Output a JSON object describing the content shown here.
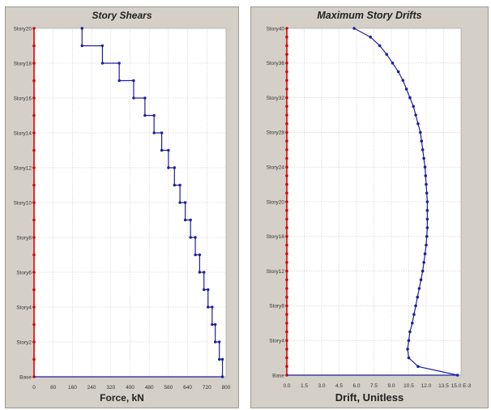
{
  "chart_data": [
    {
      "type": "line",
      "title": "Story Shears",
      "xlabel": "Force, kN",
      "xlim": [
        0,
        800
      ],
      "x_ticks": [
        "0",
        "80",
        "160",
        "240",
        "320",
        "400",
        "480",
        "560",
        "640",
        "720",
        "800"
      ],
      "y_labels": [
        "Base",
        "Story2",
        "Story4",
        "Story6",
        "Story8",
        "Story10",
        "Story12",
        "Story14",
        "Story16",
        "Story18",
        "Story20"
      ],
      "story_count": 20,
      "series": [
        {
          "color": "#1f1fa0",
          "shear_per_story": [
            785,
            772,
            755,
            742,
            725,
            708,
            690,
            672,
            652,
            630,
            608,
            585,
            560,
            532,
            500,
            462,
            415,
            355,
            285,
            200,
            120
          ]
        }
      ],
      "grid": true,
      "base_line_color": "#dd0000"
    },
    {
      "type": "line",
      "title": "Maximum Story Drifts",
      "xlabel": "Drift, Unitless",
      "xlim": [
        0,
        15
      ],
      "x_ticks": [
        "0.0",
        "1.5",
        "3.0",
        "4.5",
        "6.0",
        "7.5",
        "9.0",
        "10.5",
        "12.0",
        "13.5",
        "15.0 E-3"
      ],
      "y_labels": [
        "Base",
        "Story4",
        "Story8",
        "Story12",
        "Story16",
        "Story20",
        "Story24",
        "Story28",
        "Story32",
        "Story36",
        "Story40"
      ],
      "story_count": 40,
      "series": [
        {
          "color": "#1f1fa0",
          "drift_per_story": [
            14.7,
            11.3,
            10.5,
            10.4,
            10.5,
            10.6,
            10.8,
            10.95,
            11.1,
            11.25,
            11.4,
            11.55,
            11.7,
            11.8,
            11.9,
            12.0,
            12.05,
            12.1,
            12.1,
            12.1,
            12.1,
            12.05,
            12.0,
            11.95,
            11.9,
            11.8,
            11.7,
            11.6,
            11.5,
            11.3,
            11.1,
            10.9,
            10.6,
            10.3,
            10.0,
            9.6,
            9.1,
            8.6,
            8.0,
            7.2,
            5.8
          ]
        }
      ],
      "grid": true,
      "base_line_color": "#dd0000"
    }
  ]
}
